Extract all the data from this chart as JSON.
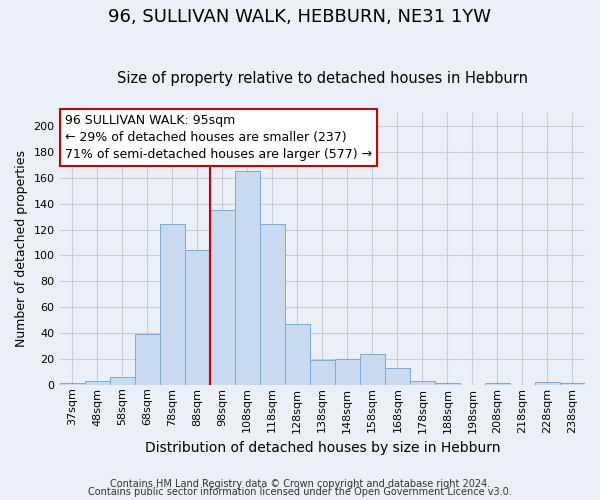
{
  "title": "96, SULLIVAN WALK, HEBBURN, NE31 1YW",
  "subtitle": "Size of property relative to detached houses in Hebburn",
  "xlabel": "Distribution of detached houses by size in Hebburn",
  "ylabel": "Number of detached properties",
  "bin_labels": [
    "37sqm",
    "48sqm",
    "58sqm",
    "68sqm",
    "78sqm",
    "88sqm",
    "98sqm",
    "108sqm",
    "118sqm",
    "128sqm",
    "138sqm",
    "148sqm",
    "158sqm",
    "168sqm",
    "178sqm",
    "188sqm",
    "198sqm",
    "208sqm",
    "218sqm",
    "228sqm",
    "238sqm"
  ],
  "bar_values": [
    1,
    3,
    6,
    39,
    124,
    104,
    135,
    165,
    124,
    47,
    19,
    20,
    24,
    13,
    3,
    1,
    0,
    1,
    0,
    2,
    1
  ],
  "bar_color": "#c9d9f0",
  "bar_edge_color": "#7aaad4",
  "vline_color": "#cc0000",
  "annotation_lines": [
    "96 SULLIVAN WALK: 95sqm",
    "← 29% of detached houses are smaller (237)",
    "71% of semi-detached houses are larger (577) →"
  ],
  "ylim": [
    0,
    210
  ],
  "yticks": [
    0,
    20,
    40,
    60,
    80,
    100,
    120,
    140,
    160,
    180,
    200
  ],
  "footnote1": "Contains HM Land Registry data © Crown copyright and database right 2024.",
  "footnote2": "Contains public sector information licensed under the Open Government Licence v3.0.",
  "background_color": "#eaeff8",
  "plot_background": "#eaeff8",
  "grid_color": "#c8cdd6",
  "title_fontsize": 13,
  "subtitle_fontsize": 10.5,
  "xlabel_fontsize": 10,
  "ylabel_fontsize": 9,
  "tick_fontsize": 8,
  "annotation_fontsize": 9,
  "footnote_fontsize": 7.0
}
